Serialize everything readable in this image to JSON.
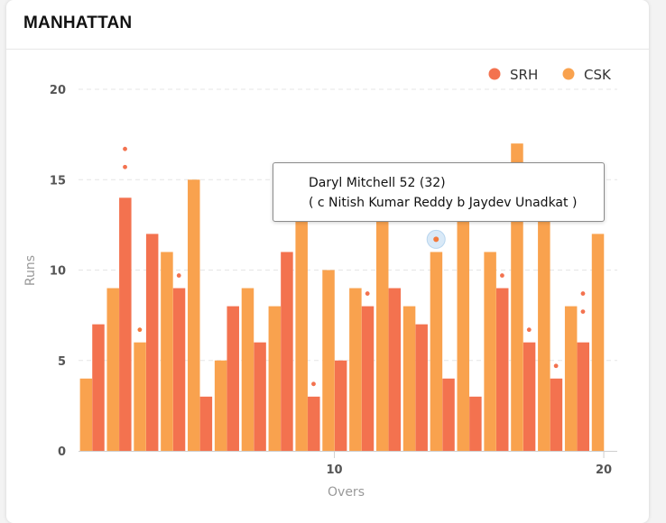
{
  "card": {
    "title": "MANHATTAN"
  },
  "colors": {
    "SRH": "#f3724f",
    "CSK": "#f9a24e",
    "wicket_SRH": "#f3724f",
    "wicket_CSK": "#f37a3c"
  },
  "tooltip": {
    "line1": "Daryl Mitchell 52 (32)",
    "line2": "( c Nitish Kumar Reddy b Jaydev Unadkat )"
  },
  "chart_data": {
    "type": "bar",
    "xlabel": "Overs",
    "ylabel": "Runs",
    "ylim": [
      0,
      20
    ],
    "xlim": [
      0.5,
      20.5
    ],
    "yticks": [
      0,
      5,
      10,
      15,
      20
    ],
    "xticks": [
      10,
      20
    ],
    "grid": true,
    "legend_position": "top-right",
    "series": [
      {
        "name": "SRH",
        "overs": [
          1,
          2,
          3,
          4,
          5,
          6,
          7,
          8,
          9,
          10,
          11,
          12,
          13,
          14,
          15,
          16,
          17,
          18,
          19
        ],
        "values": [
          7,
          14,
          12,
          9,
          3,
          8,
          6,
          11,
          3,
          5,
          8,
          9,
          7,
          4,
          3,
          9,
          6,
          4,
          6
        ]
      },
      {
        "name": "CSK",
        "overs": [
          1,
          2,
          3,
          4,
          5,
          6,
          7,
          8,
          9,
          10,
          11,
          12,
          13,
          14,
          15,
          16,
          17,
          18,
          19,
          20
        ],
        "values": [
          4,
          9,
          6,
          11,
          15,
          5,
          9,
          8,
          13,
          10,
          9,
          13,
          8,
          11,
          13,
          11,
          17,
          13,
          8,
          12
        ]
      }
    ],
    "wickets": [
      {
        "team": "SRH",
        "over": 2,
        "runs_positions": [
          15.7,
          16.7
        ]
      },
      {
        "team": "SRH",
        "over": 4,
        "runs_positions": [
          9.7
        ]
      },
      {
        "team": "SRH",
        "over": 9,
        "runs_positions": [
          3.7
        ]
      },
      {
        "team": "SRH",
        "over": 11,
        "runs_positions": [
          8.7
        ]
      },
      {
        "team": "SRH",
        "over": 16,
        "runs_positions": [
          9.7
        ]
      },
      {
        "team": "SRH",
        "over": 17,
        "runs_positions": [
          6.7
        ]
      },
      {
        "team": "SRH",
        "over": 18,
        "runs_positions": [
          4.7
        ]
      },
      {
        "team": "SRH",
        "over": 19,
        "runs_positions": [
          7.7,
          8.7
        ]
      },
      {
        "team": "CSK",
        "over": 3,
        "runs_positions": [
          6.7
        ]
      },
      {
        "team": "CSK",
        "over": 14,
        "runs_positions": [
          11.7
        ],
        "highlighted": true
      }
    ]
  }
}
